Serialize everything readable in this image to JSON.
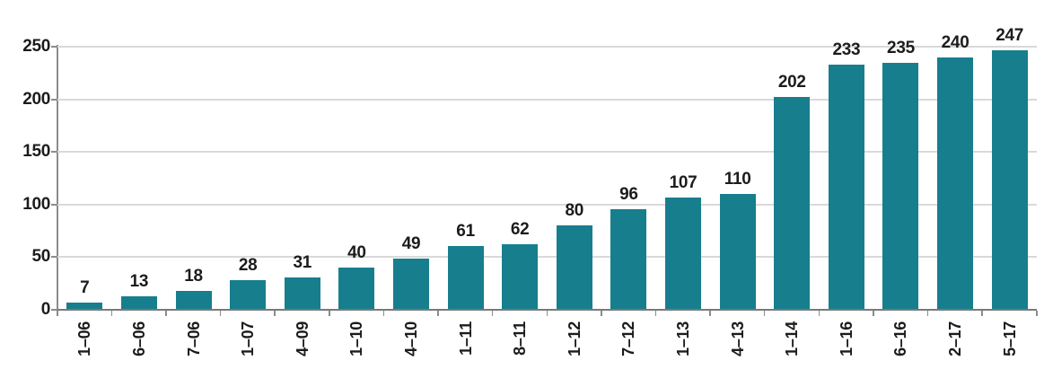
{
  "chart_data": {
    "type": "bar",
    "title": "",
    "xlabel": "",
    "ylabel": "",
    "categories": [
      "1–06",
      "6–06",
      "7–06",
      "1–07",
      "4–09",
      "1–10",
      "4–10",
      "1–11",
      "8–11",
      "1–12",
      "7–12",
      "1–13",
      "4–13",
      "1–14",
      "1–16",
      "6–16",
      "2–17",
      "5–17"
    ],
    "values": [
      7,
      13,
      18,
      28,
      31,
      40,
      49,
      61,
      62,
      80,
      96,
      107,
      110,
      202,
      233,
      235,
      240,
      247
    ],
    "ylim": [
      0,
      250
    ],
    "yticks": [
      0,
      50,
      100,
      150,
      200,
      250
    ],
    "grid": true,
    "legend_position": "none",
    "bar_color": "#177E8E",
    "gridline_color": "#d9d9d9",
    "axis_color": "#8c8c8c",
    "text_color": "#1c1c1c"
  }
}
